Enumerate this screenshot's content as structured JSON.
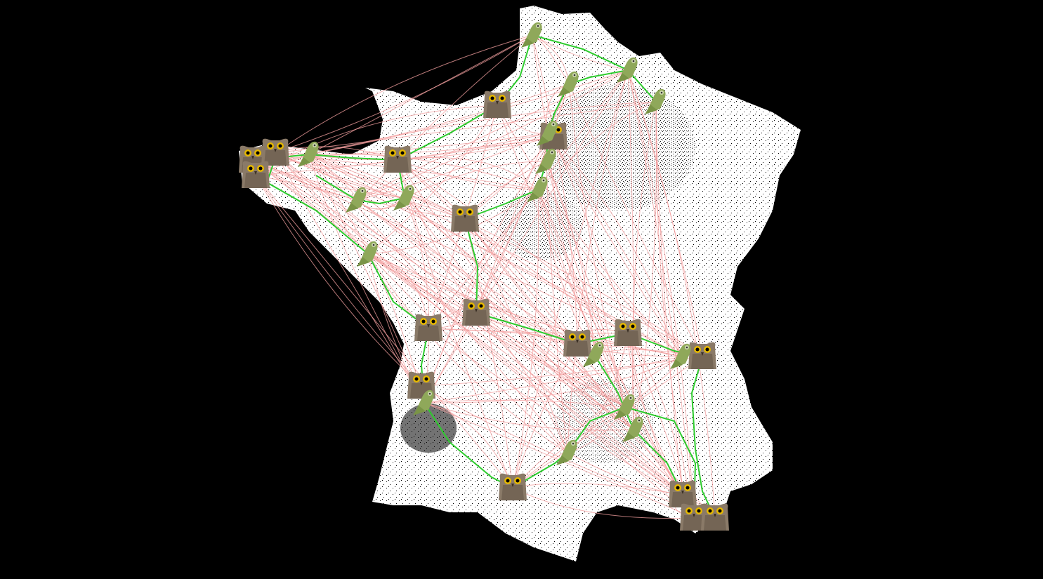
{
  "scene": {
    "background_color": "#000000",
    "land_color": "#ffffff",
    "route_color": "#f4a0a0",
    "highlight_route_color": "#2ecc2e"
  },
  "units": {
    "owl": {
      "icon": "owl-icon",
      "color": "#8a7a68",
      "eye_color": "#e6b800"
    },
    "bird": {
      "icon": "green-bird-icon",
      "color": "#8fa85a"
    }
  }
}
